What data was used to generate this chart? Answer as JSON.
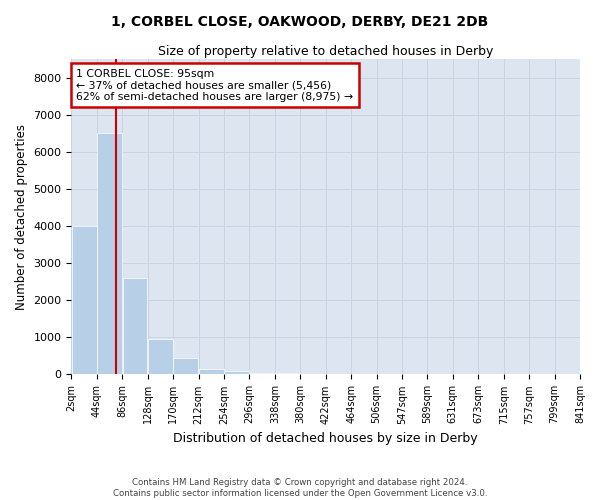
{
  "title1": "1, CORBEL CLOSE, OAKWOOD, DERBY, DE21 2DB",
  "title2": "Size of property relative to detached houses in Derby",
  "xlabel": "Distribution of detached houses by size in Derby",
  "ylabel": "Number of detached properties",
  "footer1": "Contains HM Land Registry data © Crown copyright and database right 2024.",
  "footer2": "Contains public sector information licensed under the Open Government Licence v3.0.",
  "n_bins": 20,
  "bar_heights": [
    4000,
    6500,
    2600,
    950,
    450,
    150,
    100,
    50,
    30,
    0,
    0,
    0,
    0,
    0,
    0,
    0,
    0,
    0,
    0,
    0
  ],
  "bar_color": "#b8cfe8",
  "bar_edgecolor": "white",
  "grid_color": "#c8d4e4",
  "bg_color": "#dde6f0",
  "property_size_bin": 1.25,
  "red_line_color": "#cc0000",
  "annotation_box_color": "#cc0000",
  "annotation_text1": "1 CORBEL CLOSE: 95sqm",
  "annotation_text2": "← 37% of detached houses are smaller (5,456)",
  "annotation_text3": "62% of semi-detached houses are larger (8,975) →",
  "ylim": [
    0,
    8500
  ],
  "yticks": [
    0,
    1000,
    2000,
    3000,
    4000,
    5000,
    6000,
    7000,
    8000
  ],
  "tick_labels": [
    "2sqm",
    "44sqm",
    "86sqm",
    "128sqm",
    "170sqm",
    "212sqm",
    "254sqm",
    "296sqm",
    "338sqm",
    "380sqm",
    "422sqm",
    "464sqm",
    "506sqm",
    "547sqm",
    "589sqm",
    "631sqm",
    "673sqm",
    "715sqm",
    "757sqm",
    "799sqm",
    "841sqm"
  ],
  "title1_fontsize": 10,
  "title2_fontsize": 9,
  "ylabel_fontsize": 8.5,
  "xlabel_fontsize": 9
}
